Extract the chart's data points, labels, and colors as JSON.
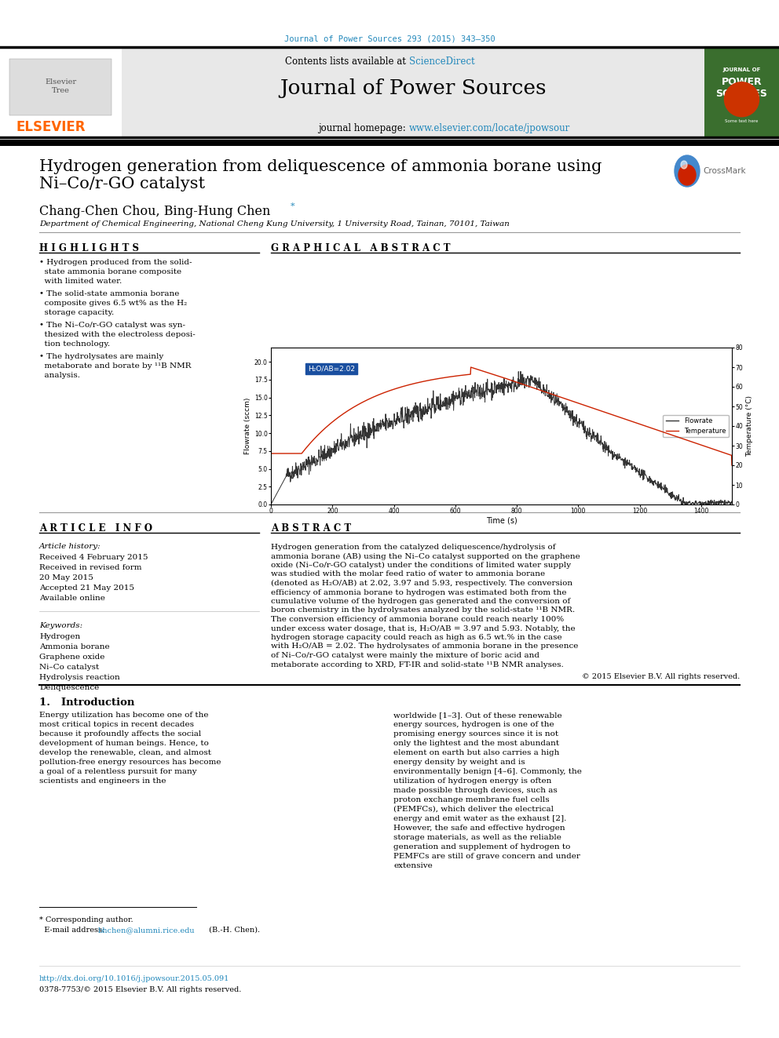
{
  "page_bg": "#ffffff",
  "top_journal_ref": "Journal of Power Sources 293 (2015) 343–350",
  "top_journal_color": "#2288bb",
  "header_bg": "#e8e8e8",
  "header_title": "Journal of Power Sources",
  "paper_title_line1": "Hydrogen generation from deliquescence of ammonia borane using",
  "paper_title_line2": "Ni–Co/r-GO catalyst",
  "authors": "Chang-Chen Chou, Bing-Hung Chen",
  "affiliation": "Department of Chemical Engineering, National Cheng Kung University, 1 University Road, Tainan, 70101, Taiwan",
  "highlights_title": "H I G H L I G H T S",
  "highlight1": "• Hydrogen produced from the solid-\n  state ammonia borane composite\n  with limited water.",
  "highlight2": "• The solid-state ammonia borane\n  composite gives 6.5 wt% as the H₂\n  storage capacity.",
  "highlight3": "• The Ni–Co/r-GO catalyst was syn-\n  thesized with the electroless deposi-\n  tion technology.",
  "highlight4": "• The hydrolysates are mainly\n  metaborate and borate by ¹¹B NMR\n  analysis.",
  "graphical_abstract_title": "G R A P H I C A L   A B S T R A C T",
  "article_info_title": "A R T I C L E   I N F O",
  "article_history_label": "Article history:",
  "article_dates": [
    "Received 4 February 2015",
    "Received in revised form",
    "20 May 2015",
    "Accepted 21 May 2015",
    "Available online"
  ],
  "keywords_label": "Keywords:",
  "keywords": [
    "Hydrogen",
    "Ammonia borane",
    "Graphene oxide",
    "Ni–Co catalyst",
    "Hydrolysis reaction",
    "Deliquescence"
  ],
  "abstract_title": "A B S T R A C T",
  "abstract_text": "Hydrogen generation from the catalyzed deliquescence/hydrolysis of ammonia borane (AB) using the Ni–Co catalyst supported on the graphene oxide (Ni–Co/r-GO catalyst) under the conditions of limited water supply was studied with the molar feed ratio of water to ammonia borane (denoted as H₂O/AB) at 2.02, 3.97 and 5.93, respectively. The conversion efficiency of ammonia borane to hydrogen was estimated both from the cumulative volume of the hydrogen gas generated and the conversion of boron chemistry in the hydrolysates analyzed by the solid-state ¹¹B NMR. The conversion efficiency of ammonia borane could reach nearly 100% under excess water dosage, that is, H₂O/AB = 3.97 and 5.93. Notably, the hydrogen storage capacity could reach as high as 6.5 wt.% in the case with H₂O/AB = 2.02. The hydrolysates of ammonia borane in the presence of Ni–Co/r-GO catalyst were mainly the mixture of boric acid and metaborate according to XRD, FT-IR and solid-state ¹¹B NMR analyses.",
  "abstract_copyright": "© 2015 Elsevier B.V. All rights reserved.",
  "intro_title": "1.   Introduction",
  "intro_text_left": "Energy utilization has become one of the most critical topics in recent decades because it profoundly affects the social development of human beings. Hence, to develop the renewable, clean, and almost pollution-free energy resources has become a goal of a relentless pursuit for many scientists and engineers in the",
  "intro_text_right": "worldwide [1–3]. Out of these renewable energy sources, hydrogen is one of the promising energy sources since it is not only the lightest and the most abundant element on earth but also carries a high energy density by weight and is environmentally benign [4–6]. Commonly, the utilization of hydrogen energy is often made possible through devices, such as proton exchange membrane fuel cells (PEMFCs), which deliver the electrical energy and emit water as the exhaust [2]. However, the safe and effective hydrogen storage materials, as well as the reliable generation and supplement of hydrogen to PEMFCs are still of grave concern and under extensive",
  "footnote_star": "* Corresponding author.",
  "footnote_email_label": "  E-mail address: ",
  "footnote_email": "bhchen@alumni.rice.edu",
  "footnote_email_suffix": " (B.-H. Chen).",
  "doi_text": "http://dx.doi.org/10.1016/j.jpowsour.2015.05.091",
  "issn_text": "0378-7753/© 2015 Elsevier B.V. All rights reserved.",
  "doi_color": "#2288bb",
  "link_color": "#2288bb",
  "elsevier_color": "#ff6600",
  "graph_annotation": "H₂O/AB=2.02",
  "graph_annotation_bg": "#1a4fa0",
  "graph_flowrate_color": "#333333",
  "graph_temperature_color": "#cc2200",
  "crossmark_text": "CrossMark"
}
